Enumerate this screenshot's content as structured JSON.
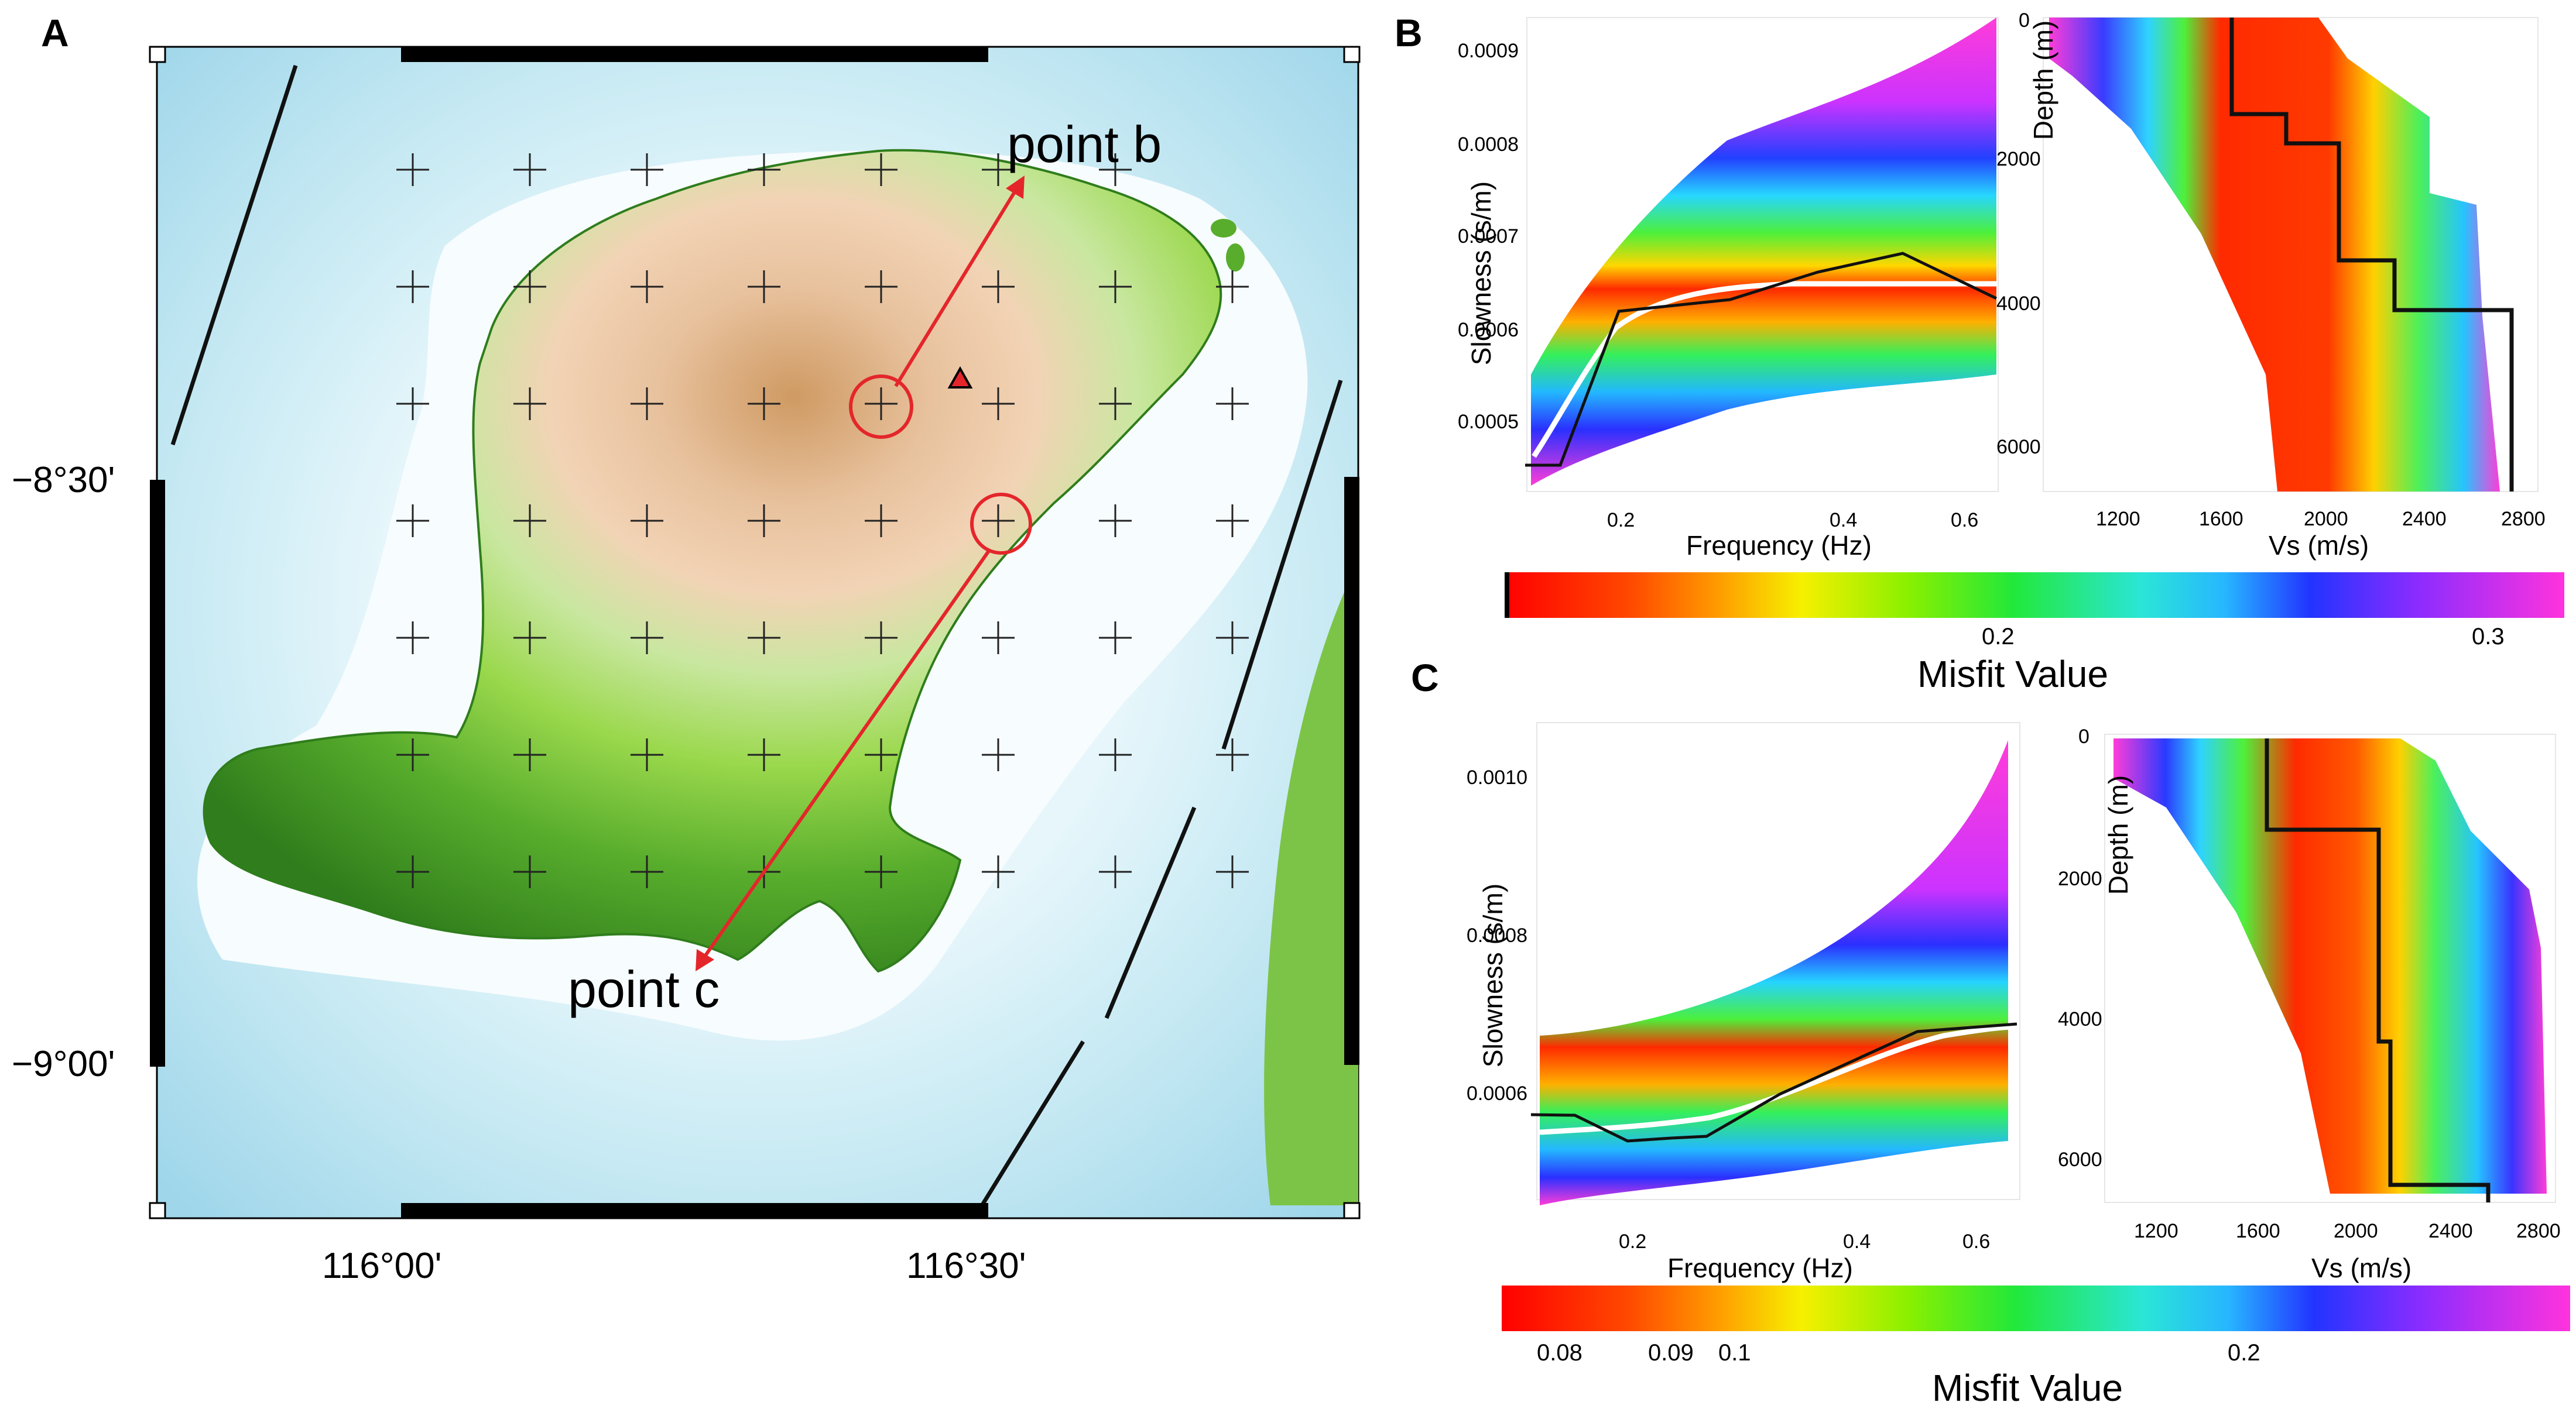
{
  "panels": {
    "a": "A",
    "b": "B",
    "c": "C"
  },
  "map": {
    "lat_labels": [
      "−8°30'",
      "−9°00'"
    ],
    "lon_labels": [
      "116°00'",
      "116°30'"
    ],
    "point_b": "point b",
    "point_c": "point c",
    "colors": {
      "arrow": "#e4262b",
      "sea_light": "#e6f6fb",
      "sea_mid": "#b6e2ef",
      "land_low": "#3f8f24",
      "land_high": "#e8c29e"
    }
  },
  "panel_b": {
    "dispersion": {
      "ylabel": "Slowness (s/m)",
      "xlabel": "Frequency (Hz)",
      "yticks": [
        "0.0009",
        "0.0008",
        "0.0007",
        "0.0006",
        "0.0005"
      ],
      "xticks": [
        "0.2",
        "0.4",
        "0.6"
      ]
    },
    "profile": {
      "ylabel": "Depth (m)",
      "xlabel": "Vs (m/s)",
      "yticks": [
        "0",
        "2000",
        "4000",
        "6000"
      ],
      "xticks": [
        "1200",
        "1600",
        "2000",
        "2400",
        "2800"
      ]
    },
    "colorbar": {
      "ticks": [
        "0.2",
        "0.3"
      ],
      "title": "Misfit Value"
    }
  },
  "panel_c": {
    "dispersion": {
      "ylabel": "Slowness (s/m)",
      "xlabel": "Frequency (Hz)",
      "yticks": [
        "0.0010",
        "0.0008",
        "0.0006"
      ],
      "xticks": [
        "0.2",
        "0.4",
        "0.6"
      ]
    },
    "profile": {
      "ylabel": "Depth (m)",
      "xlabel": "Vs (m/s)",
      "yticks": [
        "0",
        "2000",
        "4000",
        "6000"
      ],
      "xticks": [
        "1200",
        "1600",
        "2000",
        "2400",
        "2800"
      ]
    },
    "colorbar": {
      "ticks": [
        "0.08",
        "0.09",
        "0.1",
        "0.2"
      ],
      "title": "Misfit Value"
    }
  }
}
